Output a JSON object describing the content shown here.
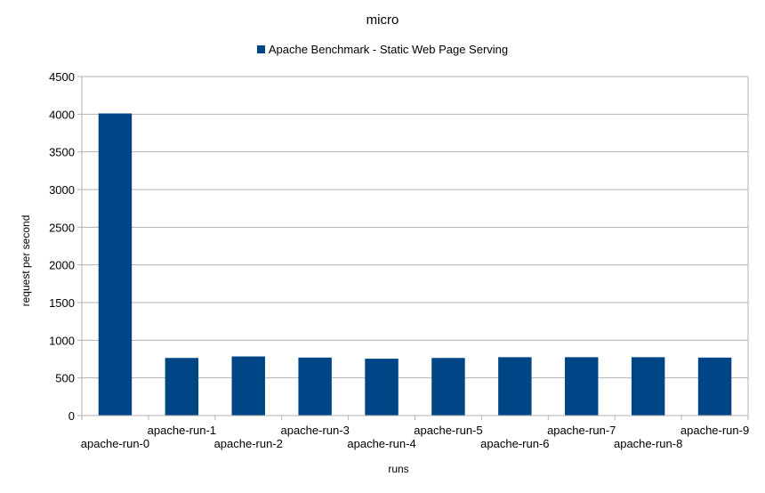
{
  "chart_data": {
    "type": "bar",
    "title": "micro",
    "xlabel": "runs",
    "ylabel": "request per second",
    "ylim": [
      0,
      4500
    ],
    "yticks": [
      0,
      500,
      1000,
      1500,
      2000,
      2500,
      3000,
      3500,
      4000,
      4500
    ],
    "grid": true,
    "legend_position": "top",
    "categories": [
      "apache-run-0",
      "apache-run-1",
      "apache-run-2",
      "apache-run-3",
      "apache-run-4",
      "apache-run-5",
      "apache-run-6",
      "apache-run-7",
      "apache-run-8",
      "apache-run-9"
    ],
    "series": [
      {
        "name": "Apache Benchmark - Static Web Page Serving",
        "color": "#004586",
        "values": [
          4010,
          765,
          785,
          770,
          755,
          765,
          775,
          775,
          775,
          770
        ]
      }
    ]
  }
}
